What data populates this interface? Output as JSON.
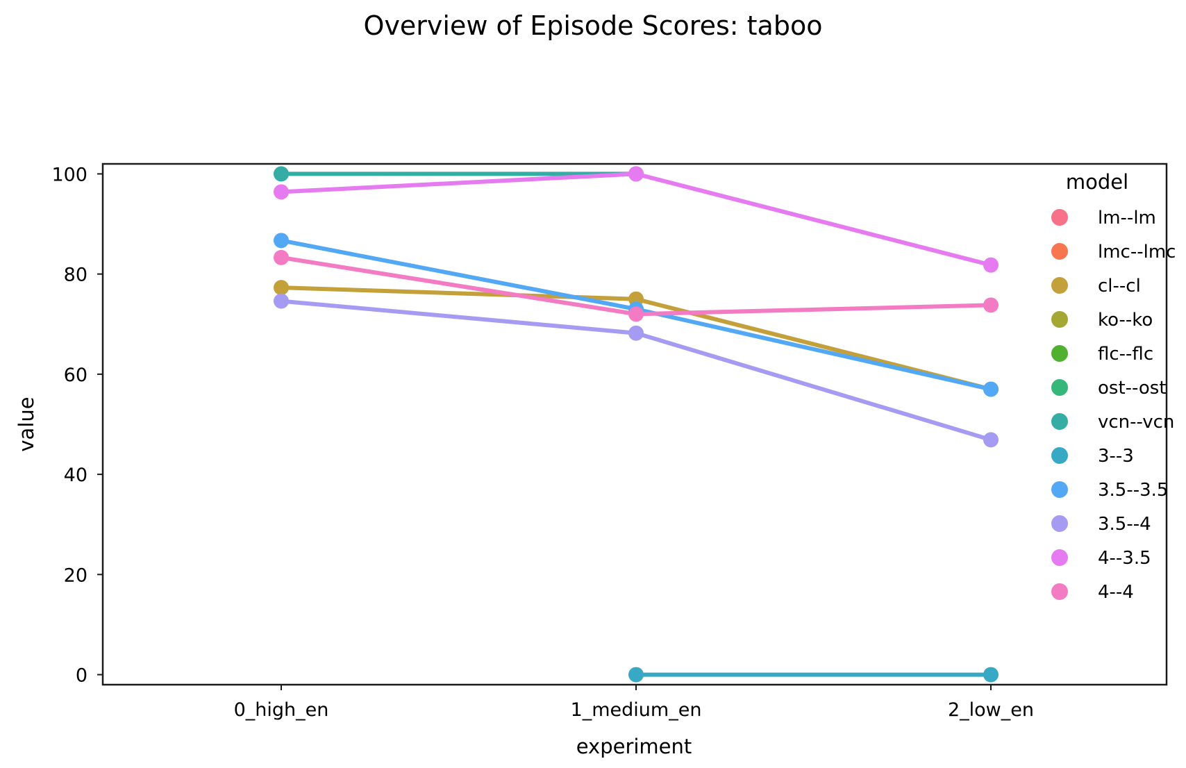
{
  "chart_data": {
    "type": "line",
    "title": "Overview of Episode Scores: taboo",
    "xlabel": "experiment",
    "ylabel": "value",
    "categories": [
      "0_high_en",
      "1_medium_en",
      "2_low_en"
    ],
    "ylim": [
      -2,
      102
    ],
    "yticks": [
      0,
      20,
      40,
      60,
      80,
      100
    ],
    "grid": false,
    "legend": {
      "title": "model",
      "placement": "top-right"
    },
    "series": [
      {
        "name": "lm--lm",
        "color": "#f77189",
        "values": [
          null,
          null,
          null
        ]
      },
      {
        "name": "lmc--lmc",
        "color": "#f7754f",
        "values": [
          null,
          null,
          null
        ]
      },
      {
        "name": "cl--cl",
        "color": "#c4a03a",
        "values": [
          77.3,
          75.0,
          57.0
        ]
      },
      {
        "name": "ko--ko",
        "color": "#a4a734",
        "values": [
          null,
          null,
          null
        ]
      },
      {
        "name": "flc--flc",
        "color": "#50b131",
        "values": [
          null,
          null,
          null
        ]
      },
      {
        "name": "ost--ost",
        "color": "#35b779",
        "values": [
          null,
          null,
          null
        ]
      },
      {
        "name": "vcn--vcn",
        "color": "#36ada4",
        "values": [
          100.0,
          100.0,
          null
        ]
      },
      {
        "name": "3--3",
        "color": "#38a9c5",
        "values": [
          null,
          0.0,
          0.0
        ]
      },
      {
        "name": "3.5--3.5",
        "color": "#53a8f5",
        "values": [
          86.7,
          73.0,
          57.0
        ]
      },
      {
        "name": "3.5--4",
        "color": "#a59bf3",
        "values": [
          74.6,
          68.2,
          46.9
        ]
      },
      {
        "name": "4--3.5",
        "color": "#e67af0",
        "values": [
          96.4,
          100.0,
          81.8
        ]
      },
      {
        "name": "4--4",
        "color": "#f37bc3",
        "values": [
          83.3,
          72.0,
          73.8
        ]
      }
    ]
  }
}
